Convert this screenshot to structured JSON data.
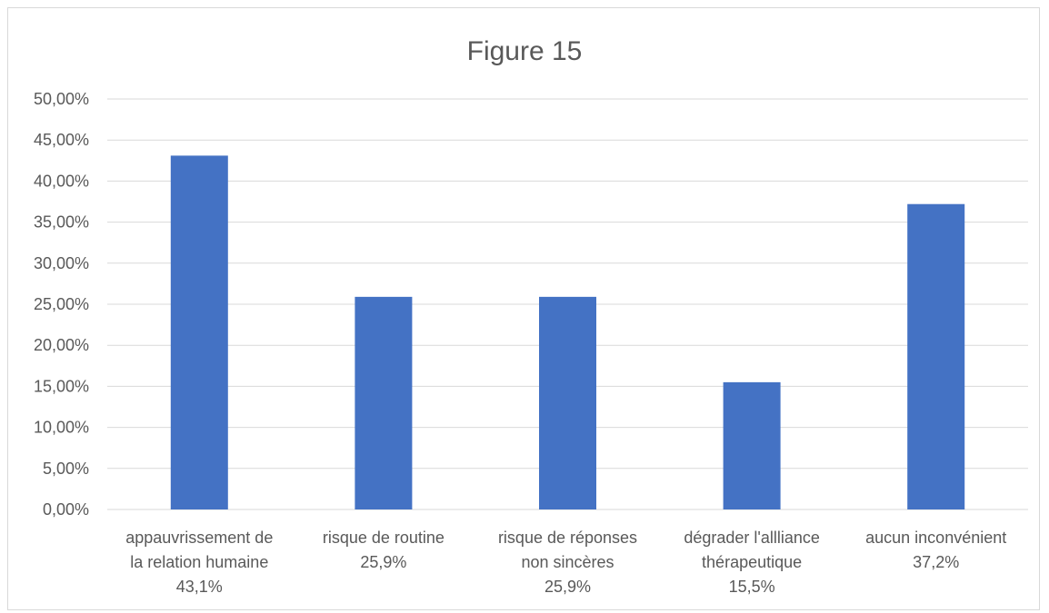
{
  "chart_data": {
    "type": "bar",
    "title": "Figure 15",
    "categories": [
      [
        "appauvrissement de",
        "la relation humaine",
        "43,1%"
      ],
      [
        "risque de routine",
        "25,9%"
      ],
      [
        "risque de réponses",
        "non sincères",
        "25,9%"
      ],
      [
        "dégrader l'allliance",
        "thérapeutique",
        "15,5%"
      ],
      [
        "aucun inconvénient",
        "37,2%"
      ]
    ],
    "values": [
      43.1,
      25.9,
      25.9,
      15.5,
      37.2
    ],
    "ylim": [
      0,
      50
    ],
    "yticks": [
      "0,00%",
      "5,00%",
      "10,00%",
      "15,00%",
      "20,00%",
      "25,00%",
      "30,00%",
      "35,00%",
      "40,00%",
      "45,00%",
      "50,00%"
    ],
    "grid": true,
    "legend": "none",
    "bar_color": "#4472c4",
    "grid_color": "#d9d9d9"
  }
}
